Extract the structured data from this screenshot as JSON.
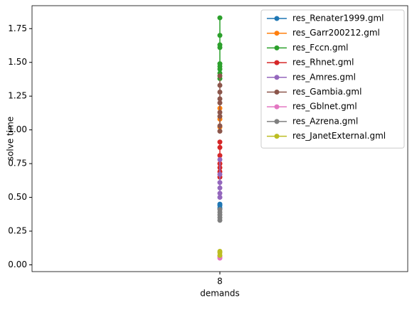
{
  "chart_data": {
    "type": "line",
    "xlabel": "demands",
    "ylabel": "solve time",
    "xlim": [
      7.95,
      8.05
    ],
    "xticks": [
      8
    ],
    "ylim": [
      -0.05,
      1.92
    ],
    "yticks": [
      {
        "value": 0,
        "label": "0.00"
      },
      {
        "value": 0.25,
        "label": "0.25"
      },
      {
        "value": 0.5,
        "label": "0.50"
      },
      {
        "value": 0.75,
        "label": "0.75"
      },
      {
        "value": 1,
        "label": "1.00"
      },
      {
        "value": 1.25,
        "label": "1.25"
      },
      {
        "value": 1.5,
        "label": "1.50"
      },
      {
        "value": 1.75,
        "label": "1.75"
      }
    ],
    "legend": "upper right",
    "series": [
      {
        "name": "res_Renater1999.gml",
        "color": "#1f77b4",
        "x": [
          8,
          8,
          8
        ],
        "values": [
          0.42,
          0.44,
          0.45
        ]
      },
      {
        "name": "res_Garr200212.gml",
        "color": "#ff7f0e",
        "x": [
          8,
          8,
          8
        ],
        "values": [
          1.02,
          1.08,
          1.16
        ]
      },
      {
        "name": "res_Fccn.gml",
        "color": "#2ca02c",
        "x": [
          8,
          8,
          8,
          8,
          8,
          8,
          8,
          8,
          8
        ],
        "values": [
          1.38,
          1.42,
          1.45,
          1.47,
          1.49,
          1.61,
          1.63,
          1.7,
          1.83
        ]
      },
      {
        "name": "res_Rhnet.gml",
        "color": "#d62728",
        "x": [
          8,
          8,
          8,
          8,
          8,
          8,
          8
        ],
        "values": [
          0.65,
          0.69,
          0.72,
          0.75,
          0.81,
          0.87,
          0.91
        ]
      },
      {
        "name": "res_Amres.gml",
        "color": "#9467bd",
        "x": [
          8,
          8,
          8,
          8,
          8,
          8
        ],
        "values": [
          0.5,
          0.53,
          0.57,
          0.61,
          0.67,
          0.78
        ]
      },
      {
        "name": "res_Gambia.gml",
        "color": "#8c564b",
        "x": [
          8,
          8,
          8,
          8,
          8,
          8,
          8,
          8,
          8
        ],
        "values": [
          0.99,
          1.03,
          1.1,
          1.13,
          1.2,
          1.23,
          1.28,
          1.33,
          1.4
        ]
      },
      {
        "name": "res_Gblnet.gml",
        "color": "#e377c2",
        "x": [
          8,
          8
        ],
        "values": [
          0.05,
          0.06
        ]
      },
      {
        "name": "res_Azrena.gml",
        "color": "#7f7f7f",
        "x": [
          8,
          8,
          8,
          8,
          8
        ],
        "values": [
          0.33,
          0.35,
          0.37,
          0.39,
          0.41
        ]
      },
      {
        "name": "res_JanetExternal.gml",
        "color": "#bcbd22",
        "x": [
          8,
          8,
          8
        ],
        "values": [
          0.07,
          0.09,
          0.1
        ]
      }
    ]
  }
}
